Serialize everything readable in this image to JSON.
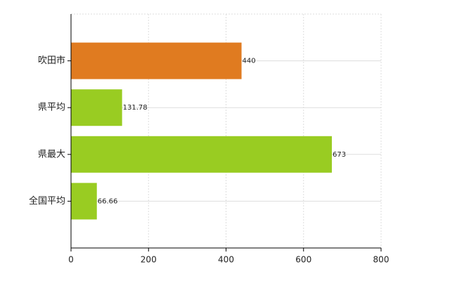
{
  "chart_data": {
    "type": "barh",
    "categories": [
      "吹田市",
      "県平均",
      "県最大",
      "全国平均"
    ],
    "values": [
      440,
      131.78,
      673,
      66.66
    ],
    "colors": [
      "#e07b20",
      "#99cc22",
      "#99cc22",
      "#99cc22"
    ],
    "xlim": [
      0,
      800
    ],
    "xticks": [
      0,
      200,
      400,
      600,
      800
    ],
    "grid": true
  }
}
